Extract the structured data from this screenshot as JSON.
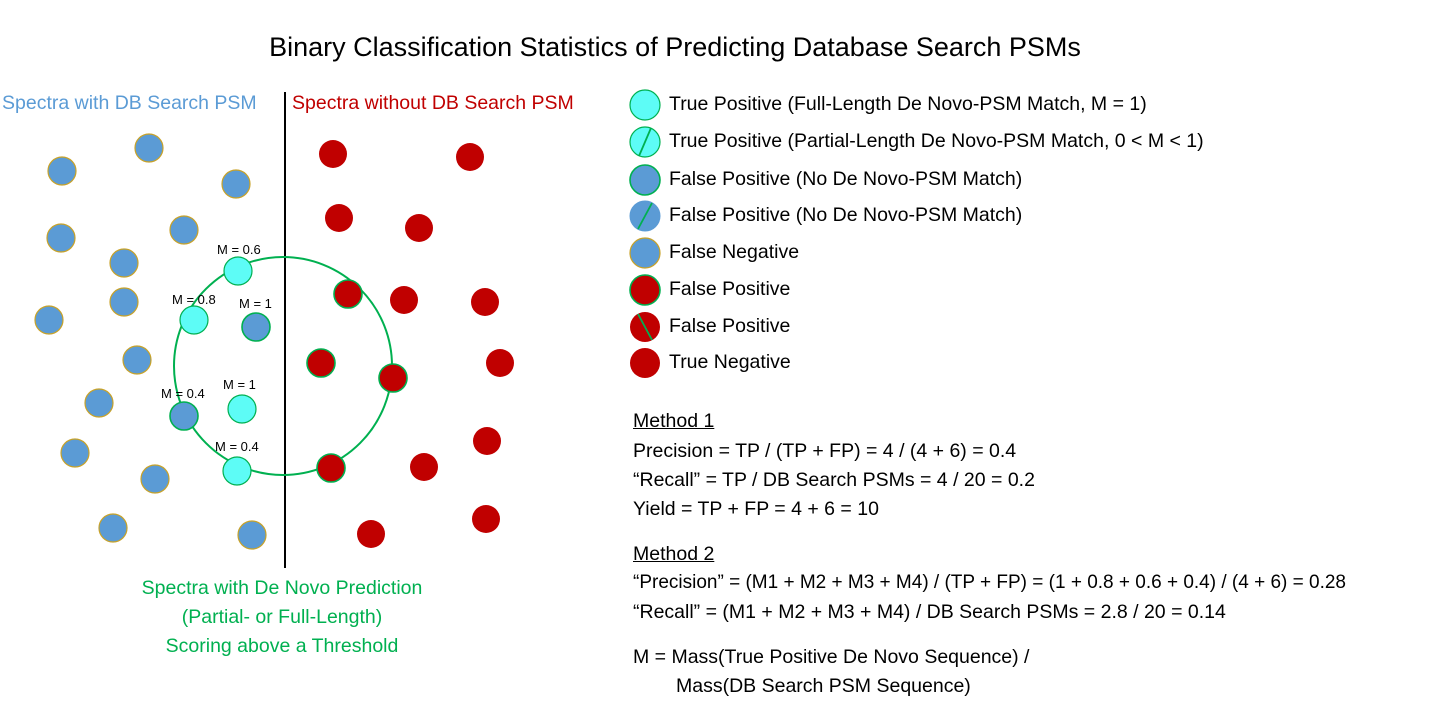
{
  "title": "Binary Classification Statistics of Predicting Database Search PSMs",
  "left_heading": "Spectra with DB Search PSM",
  "right_heading": "Spectra without DB Search PSM",
  "threshold_caption": [
    "Spectra with De Novo Prediction",
    "(Partial- or Full-Length)",
    "Scoring above a Threshold"
  ],
  "colors": {
    "blue_fill": "#5b9bd5",
    "blue_stroke": "#c9a227",
    "cyan_fill": "#5dfcf6",
    "red_fill": "#c00000",
    "green": "#00b050",
    "left_heading_color": "#5b9bd5",
    "right_heading_color": "#c00000"
  },
  "point_labels": {
    "m06": "M = 0.6",
    "m08": "M = 0.8",
    "m1_a": "M = 1",
    "m1_b": "M = 1",
    "m04_a": "M = 0.4",
    "m04_b": "M = 0.4"
  },
  "legend": [
    {
      "label": "True Positive (Full-Length De Novo-PSM Match, M = 1)",
      "marker": "cyan-circle"
    },
    {
      "label": "True Positive (Partial-Length De Novo-PSM Match, 0 < M < 1)",
      "marker": "cyan-circle-slash"
    },
    {
      "label": "False Positive (No De Novo-PSM Match)",
      "marker": "blue-circle-green-ring"
    },
    {
      "label": "False Positive (No De Novo-PSM Match)",
      "marker": "blue-circle-slash"
    },
    {
      "label": "False Negative",
      "marker": "blue-circle"
    },
    {
      "label": "False Positive",
      "marker": "red-circle-green-ring"
    },
    {
      "label": "False Positive",
      "marker": "red-circle-slash"
    },
    {
      "label": "True Negative",
      "marker": "red-circle"
    }
  ],
  "method1": {
    "heading": "Method 1",
    "precision": "Precision = TP / (TP + FP) = 4 / (4 + 6) = 0.4",
    "recall": "“Recall” = TP / DB Search PSMs = 4 / 20 = 0.2",
    "yield": "Yield = TP + FP = 4 + 6 = 10"
  },
  "method2": {
    "heading": "Method 2",
    "precision": "“Precision” = (M1 + M2 + M3 + M4) / (TP + FP) = (1 + 0.8 + 0.6 + 0.4) / (4 + 6) = 0.28",
    "recall": "“Recall” = (M1 + M2 + M3 + M4) / DB Search PSMs = 2.8 / 20 = 0.14"
  },
  "m_definition": {
    "line1": "M = Mass(True Positive De Novo Sequence) /",
    "line2": "Mass(DB Search PSM Sequence)"
  }
}
